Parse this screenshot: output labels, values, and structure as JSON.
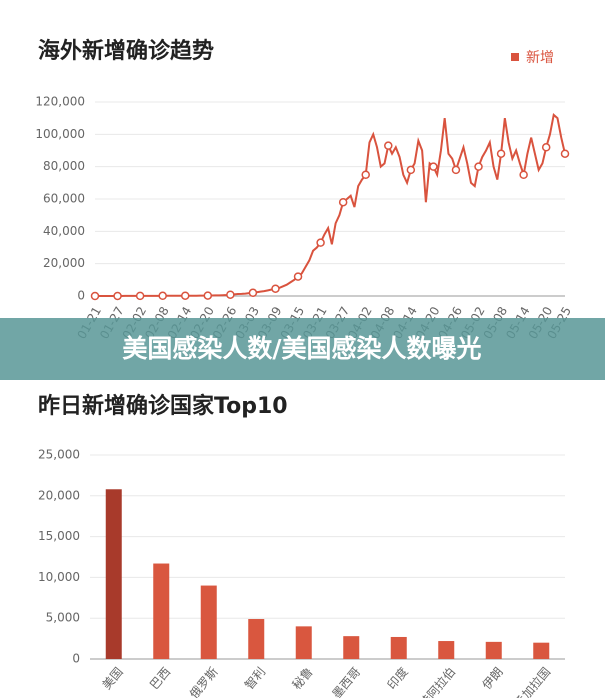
{
  "chart_data": [
    {
      "type": "line",
      "title": "海外新增确诊趋势",
      "categories": [
        "01-21",
        null,
        null,
        null,
        null,
        null,
        "01-27",
        null,
        null,
        null,
        null,
        null,
        "02-02",
        null,
        null,
        null,
        null,
        null,
        "02-08",
        null,
        null,
        null,
        null,
        null,
        "02-14",
        null,
        null,
        null,
        null,
        null,
        "02-20",
        null,
        null,
        null,
        null,
        null,
        "02-26",
        null,
        null,
        null,
        null,
        null,
        "03-03",
        null,
        null,
        null,
        null,
        null,
        "03-09",
        null,
        null,
        null,
        null,
        null,
        "03-15",
        null,
        null,
        null,
        null,
        null,
        "03-21",
        null,
        null,
        null,
        null,
        null,
        "03-27",
        null,
        null,
        null,
        null,
        null,
        "04-02",
        null,
        null,
        null,
        null,
        null,
        "04-08",
        null,
        null,
        null,
        null,
        null,
        "04-14",
        null,
        null,
        null,
        null,
        null,
        "04-20",
        null,
        null,
        null,
        null,
        null,
        "04-26",
        null,
        null,
        null,
        null,
        null,
        "05-02",
        null,
        null,
        null,
        null,
        null,
        "05-08",
        null,
        null,
        null,
        null,
        null,
        "05-14",
        null,
        null,
        null,
        null,
        null,
        "05-20",
        null,
        null,
        null,
        null,
        "05-25"
      ],
      "series": [
        {
          "name": "新增",
          "color": "#d9533e",
          "values": [
            0,
            0,
            0,
            0,
            10,
            20,
            30,
            30,
            40,
            50,
            60,
            70,
            80,
            90,
            100,
            100,
            100,
            100,
            120,
            130,
            130,
            140,
            150,
            150,
            160,
            170,
            180,
            190,
            200,
            220,
            250,
            300,
            350,
            400,
            500,
            600,
            800,
            1000,
            1200,
            1300,
            1500,
            1800,
            2000,
            2300,
            2700,
            3000,
            3500,
            4000,
            4500,
            5000,
            6000,
            7000,
            8500,
            10000,
            12000,
            14000,
            18000,
            22000,
            28000,
            30000,
            33000,
            38000,
            42000,
            32000,
            45000,
            50000,
            58000,
            60000,
            62000,
            55000,
            68000,
            72000,
            75000,
            95000,
            100000,
            92000,
            80000,
            82000,
            93000,
            88000,
            92000,
            86000,
            75000,
            70000,
            78000,
            82000,
            96000,
            90000,
            58000,
            82000,
            80000,
            75000,
            90000,
            110000,
            88000,
            85000,
            78000,
            85000,
            92000,
            82000,
            70000,
            68000,
            80000,
            86000,
            90000,
            95000,
            80000,
            72000,
            88000,
            110000,
            95000,
            85000,
            90000,
            82000,
            75000,
            88000,
            98000,
            88000,
            78000,
            82000,
            92000,
            100000,
            112000,
            110000,
            98000,
            88000
          ]
        }
      ],
      "ylim": [
        0,
        120000
      ],
      "yticks": [
        0,
        {
          "value": 20000,
          "label": "20,000"
        },
        {
          "value": 40000,
          "label": "40,000"
        },
        {
          "value": 60000,
          "label": "60,000"
        },
        {
          "value": 80000,
          "label": "80,000"
        },
        {
          "value": 100000,
          "label": "100,000"
        },
        {
          "value": 120000,
          "label": "120,000"
        }
      ],
      "grid": true,
      "legend": "top-right"
    },
    {
      "type": "bar",
      "title": "昨日新增确诊国家Top10",
      "categories": [
        "美国",
        "巴西",
        "俄罗斯",
        "智利",
        "秘鲁",
        "墨西哥",
        "印度",
        "沙特阿拉伯",
        "伊朗",
        "孟加拉国"
      ],
      "values": [
        20800,
        11700,
        9000,
        4900,
        4000,
        2800,
        2700,
        2200,
        2100,
        2000
      ],
      "colors": [
        "#a83a2b",
        "#d9573f",
        "#d9573f",
        "#d9573f",
        "#d9573f",
        "#d9573f",
        "#d9573f",
        "#d9573f",
        "#d9573f",
        "#d9573f"
      ],
      "ylim": [
        0,
        25000
      ],
      "yticks": [
        0,
        {
          "value": 5000,
          "label": "5,000"
        },
        {
          "value": 10000,
          "label": "10,000"
        },
        {
          "value": 15000,
          "label": "15,000"
        },
        {
          "value": 20000,
          "label": "20,000"
        },
        {
          "value": 25000,
          "label": "25,000"
        }
      ],
      "grid": true
    }
  ],
  "banner": "美国感染人数/美国感染人数曝光"
}
